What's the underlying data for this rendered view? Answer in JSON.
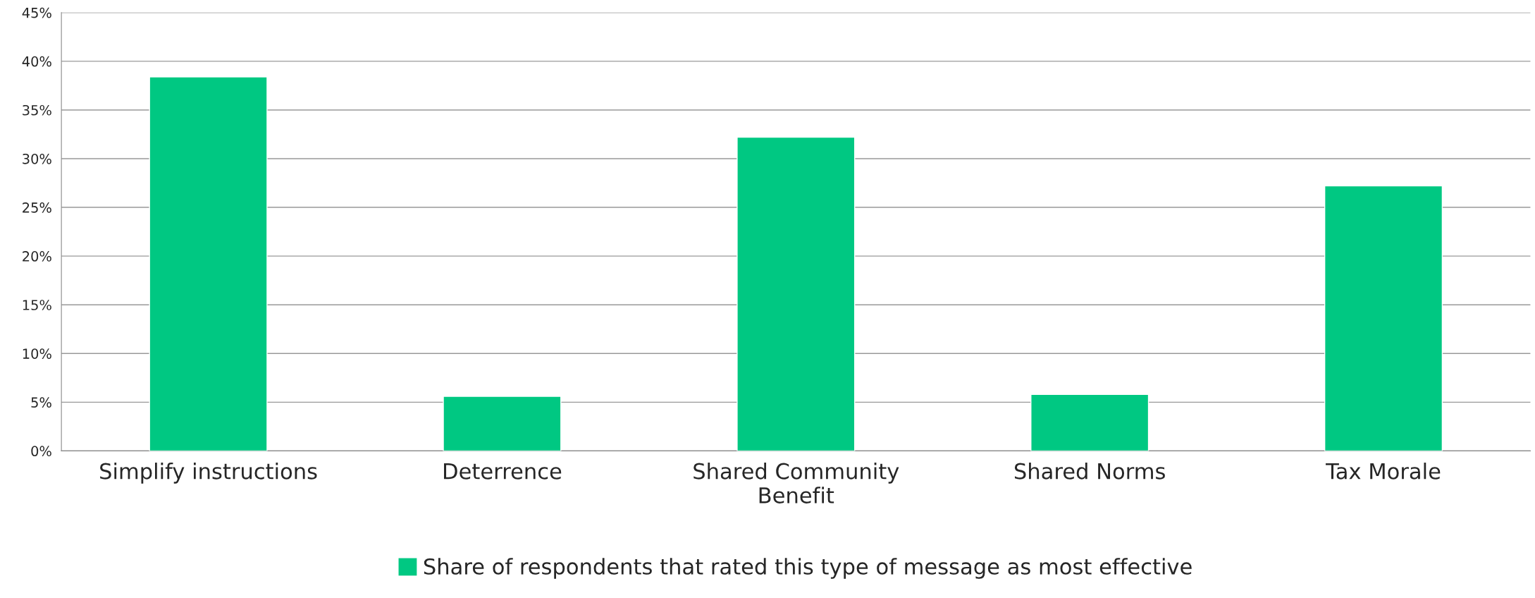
{
  "chart_data": {
    "type": "bar",
    "categories": [
      "Simplify instructions",
      "Deterrence",
      "Shared Community\nBenefit",
      "Shared Norms",
      "Tax Morale"
    ],
    "series": [
      {
        "name": "Share of respondents that rated this type of message as most effective",
        "color": "#00c882",
        "values": [
          38.4,
          5.6,
          32.2,
          5.8,
          27.2
        ]
      }
    ],
    "ylim": [
      0,
      45
    ],
    "yticks": [
      {
        "value": 0,
        "label": "0%"
      },
      {
        "value": 5,
        "label": "5%"
      },
      {
        "value": 10,
        "label": "10%"
      },
      {
        "value": 15,
        "label": "15%"
      },
      {
        "value": 20,
        "label": "20%"
      },
      {
        "value": 25,
        "label": "25%"
      },
      {
        "value": 30,
        "label": "30%"
      },
      {
        "value": 35,
        "label": "35%"
      },
      {
        "value": 40,
        "label": "40%"
      },
      {
        "value": 45,
        "label": "45%"
      }
    ],
    "grid": "y",
    "legend": "bottom"
  }
}
